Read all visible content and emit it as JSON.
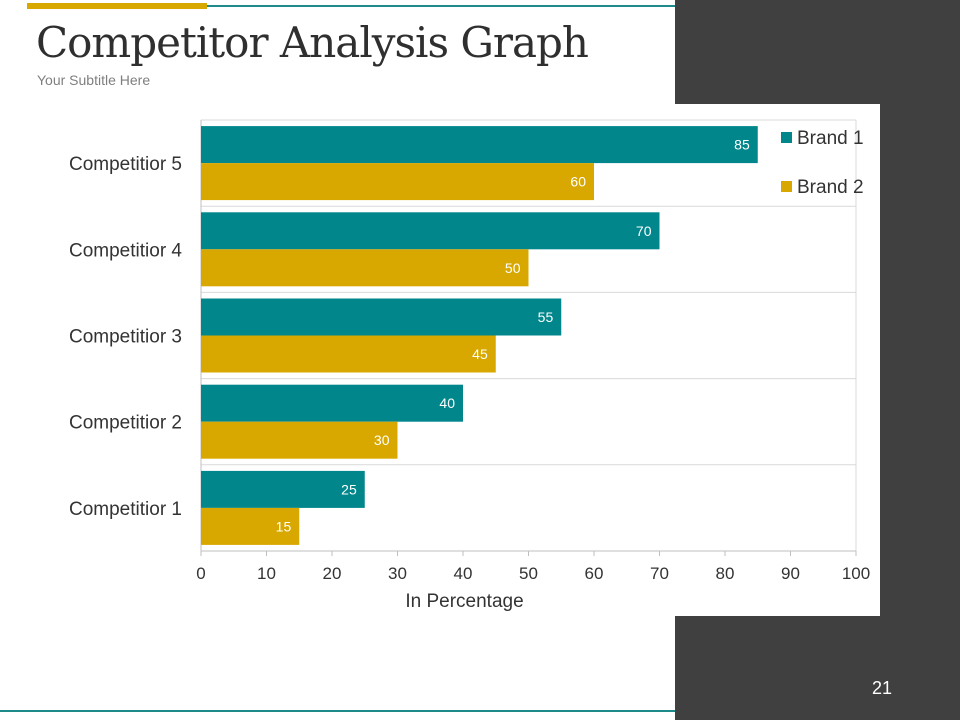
{
  "slide": {
    "title": "Competitor Analysis Graph",
    "subtitle": "Your Subtitle Here",
    "page_number": "21"
  },
  "colors": {
    "brand1": "#00868b",
    "brand2": "#d8a800",
    "panel": "#404040",
    "accent_line": "#1f8a8a"
  },
  "chart_data": {
    "type": "bar",
    "orientation": "horizontal",
    "categories": [
      "Competitior 1",
      "Competitior 2",
      "Competitior 3",
      "Competitior 4",
      "Competitior 5"
    ],
    "series": [
      {
        "name": "Brand 1",
        "values": [
          25,
          40,
          55,
          70,
          85
        ]
      },
      {
        "name": "Brand 2",
        "values": [
          15,
          30,
          45,
          50,
          60
        ]
      }
    ],
    "xlabel": "In Percentage",
    "ylabel": "",
    "xlim": [
      0,
      100
    ],
    "xticks": [
      "0",
      "10",
      "20",
      "30",
      "40",
      "50",
      "60",
      "70",
      "80",
      "90",
      "100"
    ],
    "data_labels": true,
    "grid": true,
    "legend": "top-right"
  }
}
